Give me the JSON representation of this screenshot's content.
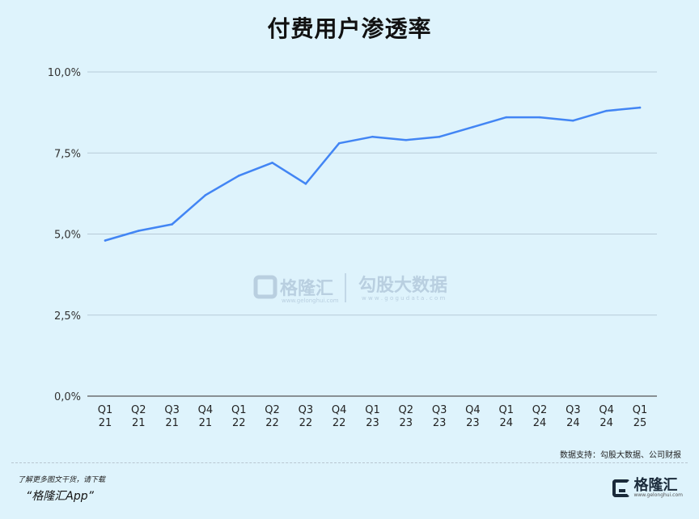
{
  "title": "付费用户渗透率",
  "source": "数据支持：勾股大数据、公司财报",
  "promo_line1": "了解更多图文干货，请下载",
  "promo_line2": "“格隆汇App”",
  "brand": {
    "name": "格隆汇",
    "url": "www.gelonghui.com"
  },
  "watermark": {
    "brand1": "格隆汇",
    "brand1_url": "www.gelonghui.com",
    "brand2": "勾股大数据",
    "brand2_url": "w w w . g o g u d a t a . c o m"
  },
  "chart_data": {
    "type": "line",
    "title": "付费用户渗透率",
    "xlabel": "",
    "ylabel": "",
    "ylim": [
      0,
      10
    ],
    "yticks": [
      "0,0%",
      "2,5%",
      "5,0%",
      "7,5%",
      "10,0%"
    ],
    "grid": true,
    "categories": [
      [
        "Q1",
        "21"
      ],
      [
        "Q2",
        "21"
      ],
      [
        "Q3",
        "21"
      ],
      [
        "Q4",
        "21"
      ],
      [
        "Q1",
        "22"
      ],
      [
        "Q2",
        "22"
      ],
      [
        "Q3",
        "22"
      ],
      [
        "Q4",
        "22"
      ],
      [
        "Q1",
        "23"
      ],
      [
        "Q2",
        "23"
      ],
      [
        "Q3",
        "23"
      ],
      [
        "Q4",
        "23"
      ],
      [
        "Q1",
        "24"
      ],
      [
        "Q2",
        "24"
      ],
      [
        "Q3",
        "24"
      ],
      [
        "Q4",
        "24"
      ],
      [
        "Q1",
        "25"
      ]
    ],
    "series": [
      {
        "color": "#4285f4",
        "values": [
          4.8,
          5.1,
          5.3,
          6.2,
          6.8,
          7.2,
          6.55,
          7.8,
          8.0,
          7.9,
          8.0,
          8.3,
          8.6,
          8.6,
          8.5,
          8.8,
          8.9
        ]
      }
    ]
  }
}
